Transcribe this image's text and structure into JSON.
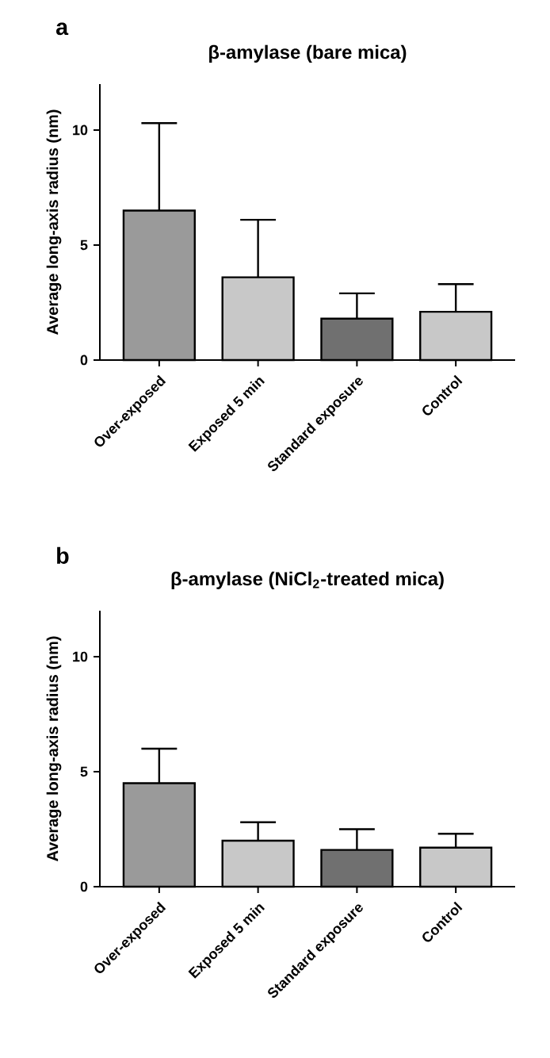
{
  "chart_data": [
    {
      "type": "bar",
      "title": "β-amylase (bare mica)",
      "ylabel": "Average long-axis radius (nm)",
      "annotations": [
        "a"
      ],
      "categories": [
        "Over-exposed",
        "Exposed 5 min",
        "Standard exposure",
        "Control"
      ],
      "values": [
        6.5,
        3.6,
        1.8,
        2.1
      ],
      "errors": [
        [
          6.5,
          10.3
        ],
        [
          3.6,
          6.1
        ],
        [
          1.8,
          2.9
        ],
        [
          2.1,
          3.3
        ]
      ],
      "colors": [
        "#9a9a9a",
        "#c8c8c8",
        "#707070",
        "#c8c8c8"
      ],
      "ylim": [
        0,
        12
      ],
      "yticks": [
        0,
        5,
        10
      ],
      "grid": false
    },
    {
      "type": "bar",
      "title": "β-amylase (NiCl$_{2}$-treated mica)",
      "ylabel": "Average long-axis radius (nm)",
      "annotations": [
        "b"
      ],
      "categories": [
        "Over-exposed",
        "Exposed 5 min",
        "Standard exposure",
        "Control"
      ],
      "values": [
        4.5,
        2.0,
        1.6,
        1.7
      ],
      "errors": [
        [
          4.5,
          6.0
        ],
        [
          2.0,
          2.8
        ],
        [
          1.6,
          2.5
        ],
        [
          1.7,
          2.3
        ]
      ],
      "colors": [
        "#9a9a9a",
        "#c8c8c8",
        "#707070",
        "#c8c8c8"
      ],
      "ylim": [
        0,
        12
      ],
      "yticks": [
        0,
        5,
        10
      ],
      "grid": false
    }
  ]
}
